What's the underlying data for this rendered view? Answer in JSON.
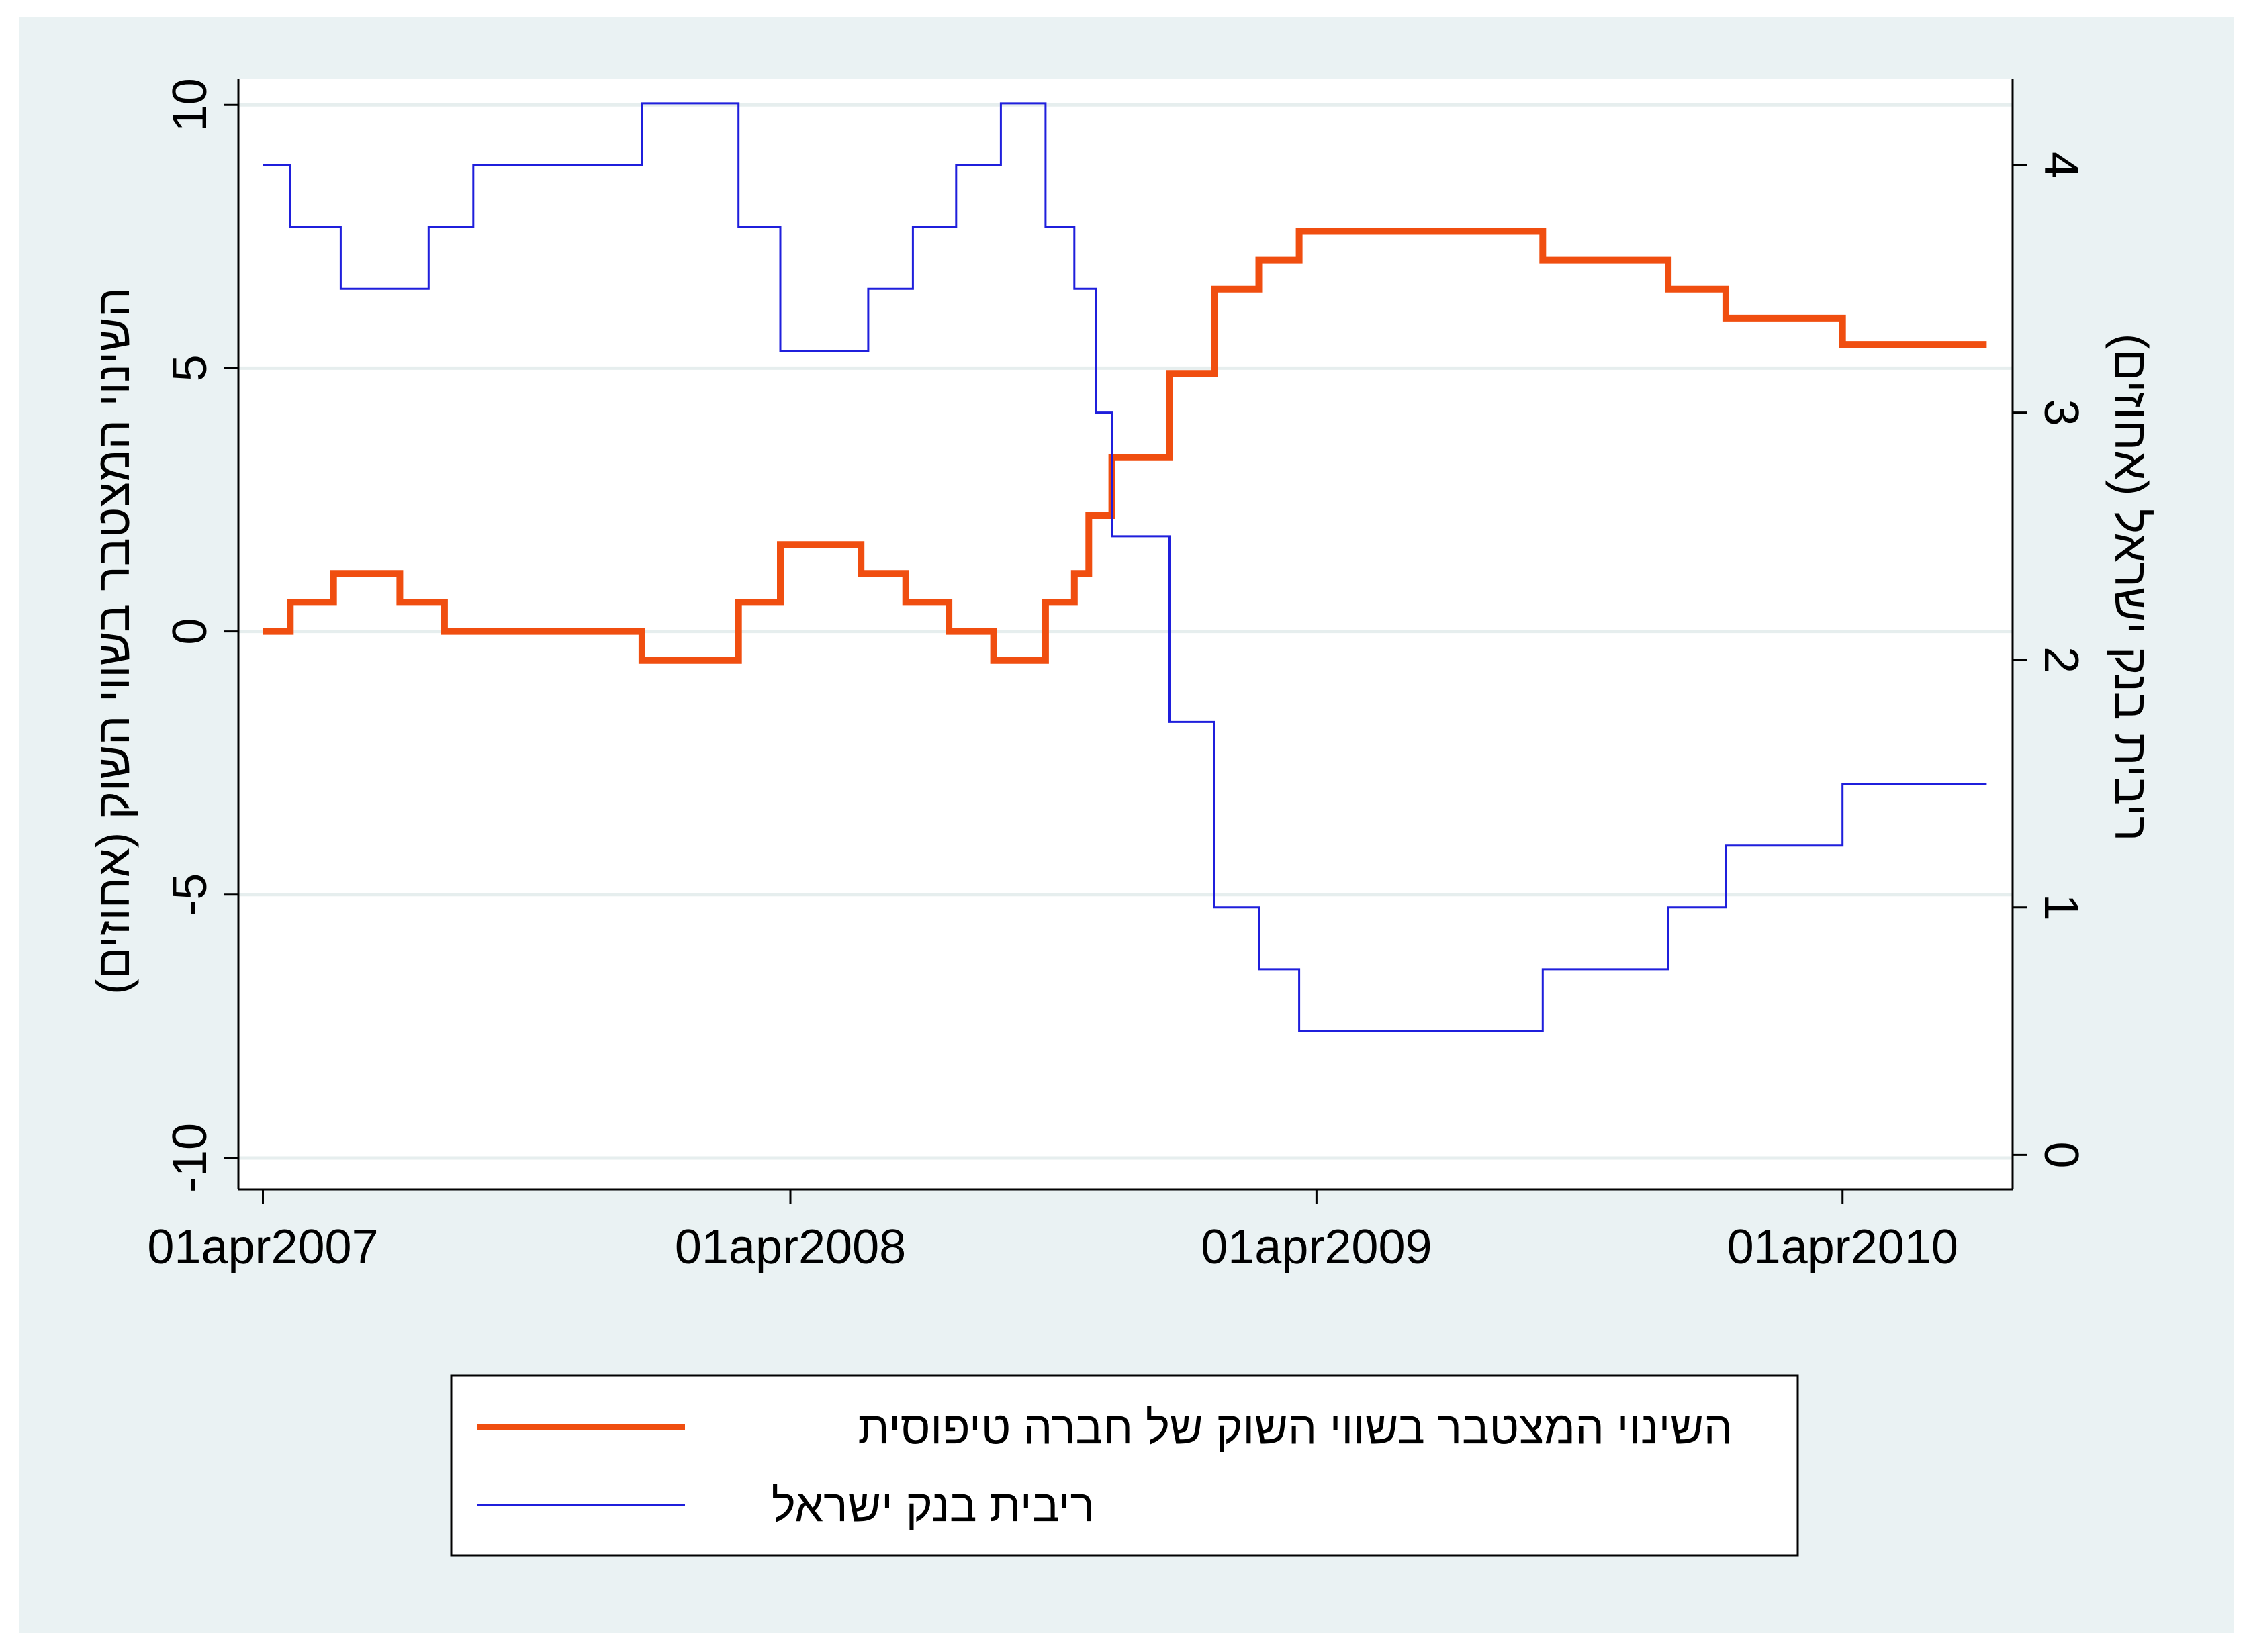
{
  "chart_data": {
    "type": "line",
    "xlabel": "",
    "x_ticks": [
      "01apr2007",
      "01apr2008",
      "01apr2009",
      "01apr2010"
    ],
    "y_left": {
      "label": "השינוי המצטבר בשווי השוק (אחוזים)",
      "ticks": [
        "-10",
        "-5",
        "0",
        "5",
        "10"
      ],
      "range": [
        -10.6,
        10.5
      ]
    },
    "y_right": {
      "label": "ריבית בנק ישראל (אחוזים)",
      "ticks": [
        "0",
        "1",
        "2",
        "3",
        "4"
      ],
      "range": [
        -0.14,
        4.35
      ]
    },
    "grid": true,
    "legend_position": "bottom",
    "x_range": [
      "2007-03-15",
      "2010-07-28"
    ],
    "series": [
      {
        "name": "השינוי המצטבר בשווי השוק של חברה טיפוסית",
        "color": "#f04e10",
        "axis": "left",
        "points": [
          [
            "2007-04-01",
            0.0
          ],
          [
            "2007-04-20",
            0.55
          ],
          [
            "2007-05-20",
            1.1
          ],
          [
            "2007-07-05",
            0.55
          ],
          [
            "2007-08-05",
            0.0
          ],
          [
            "2007-12-20",
            -0.55
          ],
          [
            "2008-02-25",
            0.55
          ],
          [
            "2008-03-25",
            1.65
          ],
          [
            "2008-05-20",
            1.1
          ],
          [
            "2008-06-20",
            0.55
          ],
          [
            "2008-07-20",
            0.0
          ],
          [
            "2008-08-20",
            -0.55
          ],
          [
            "2008-09-25",
            0.55
          ],
          [
            "2008-10-15",
            1.1
          ],
          [
            "2008-10-25",
            2.2
          ],
          [
            "2008-11-10",
            3.3
          ],
          [
            "2008-12-20",
            4.9
          ],
          [
            "2009-01-20",
            6.5
          ],
          [
            "2009-02-20",
            7.05
          ],
          [
            "2009-03-20",
            7.6
          ],
          [
            "2009-09-05",
            7.05
          ],
          [
            "2009-12-01",
            6.5
          ],
          [
            "2010-01-10",
            5.95
          ],
          [
            "2010-04-01",
            5.45
          ],
          [
            "2010-07-10",
            5.45
          ]
        ]
      },
      {
        "name": "ריבית בנק ישראל",
        "color": "#1f1fdc",
        "axis": "right",
        "points": [
          [
            "2007-04-01",
            4.0
          ],
          [
            "2007-04-20",
            3.75
          ],
          [
            "2007-05-25",
            3.5
          ],
          [
            "2007-07-25",
            3.75
          ],
          [
            "2007-08-25",
            4.0
          ],
          [
            "2007-12-20",
            4.25
          ],
          [
            "2008-02-25",
            3.75
          ],
          [
            "2008-03-25",
            3.25
          ],
          [
            "2008-05-25",
            3.5
          ],
          [
            "2008-06-25",
            3.75
          ],
          [
            "2008-07-25",
            4.0
          ],
          [
            "2008-08-25",
            4.25
          ],
          [
            "2008-09-25",
            3.75
          ],
          [
            "2008-10-15",
            3.5
          ],
          [
            "2008-10-30",
            3.0
          ],
          [
            "2008-11-10",
            2.5
          ],
          [
            "2008-12-20",
            1.75
          ],
          [
            "2009-01-20",
            1.0
          ],
          [
            "2009-02-20",
            0.75
          ],
          [
            "2009-03-20",
            0.5
          ],
          [
            "2009-09-05",
            0.75
          ],
          [
            "2009-12-01",
            1.0
          ],
          [
            "2010-01-10",
            1.25
          ],
          [
            "2010-04-01",
            1.5
          ],
          [
            "2010-07-10",
            1.5
          ]
        ]
      }
    ]
  }
}
